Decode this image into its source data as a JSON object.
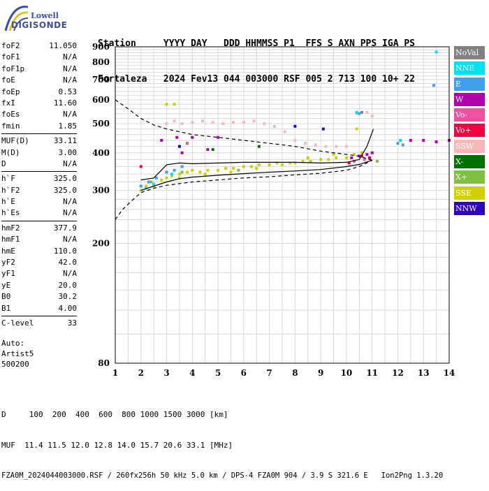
{
  "logo": {
    "line1": "Lowell",
    "line2": "DIGISONDE"
  },
  "header": {
    "row1": [
      "Station",
      "YYYY",
      "DAY",
      "DDD",
      "HHMMSS",
      "P1",
      "FFS",
      "S",
      "AXN",
      "PPS",
      "IGA",
      "PS"
    ],
    "row2": [
      "Fortaleza",
      "2024",
      "Fev13",
      "044",
      "003000",
      "RSF",
      "005",
      "2",
      "713",
      "100",
      "10+",
      "22"
    ]
  },
  "params": [
    {
      "group": [
        {
          "name": "foF2",
          "value": "11.050"
        },
        {
          "name": "foF1",
          "value": "N/A"
        },
        {
          "name": "foF1p",
          "value": "N/A"
        },
        {
          "name": "foE",
          "value": "N/A"
        },
        {
          "name": "foEp",
          "value": "0.53"
        },
        {
          "name": "fxI",
          "value": "11.60"
        },
        {
          "name": "foEs",
          "value": "N/A"
        },
        {
          "name": "fmin",
          "value": "1.85"
        }
      ]
    },
    {
      "group": [
        {
          "name": "MUF(D)",
          "value": "33.11"
        },
        {
          "name": "M(D)",
          "value": "3.00"
        },
        {
          "name": "D",
          "value": "N/A"
        }
      ]
    },
    {
      "group": [
        {
          "name": "h`F",
          "value": "325.0"
        },
        {
          "name": "h`F2",
          "value": "325.0"
        },
        {
          "name": "h`E",
          "value": "N/A"
        },
        {
          "name": "h`Es",
          "value": "N/A"
        }
      ]
    },
    {
      "group": [
        {
          "name": "hmF2",
          "value": "377.9"
        },
        {
          "name": "hmF1",
          "value": "N/A"
        },
        {
          "name": "hmE",
          "value": "110.0"
        },
        {
          "name": "yF2",
          "value": "42.0"
        },
        {
          "name": "yF1",
          "value": "N/A"
        },
        {
          "name": "yE",
          "value": "20.0"
        },
        {
          "name": "B0",
          "value": "30.2"
        },
        {
          "name": "B1",
          "value": "4.00"
        }
      ]
    },
    {
      "group": [
        {
          "name": "C-level",
          "value": "33"
        }
      ]
    }
  ],
  "artist": {
    "line1": "Auto:",
    "line2": "Artist5",
    "line3": "500200"
  },
  "footer": {
    "d_row": "D     100  200  400  600  800 1000 1500 3000 [km]",
    "muf_row": "MUF  11.4 11.5 12.0 12.8 14.0 15.7 20.6 33.1 [MHz]",
    "info_row": "FZA0M_2024044003000.RSF / 260fx256h 50 kHz 5.0 km / DPS-4 FZA0M 904 / 3.9 S 321.6 E   Ion2Png 1.3.20"
  },
  "legend": [
    {
      "label": "NoVal",
      "color": "#808080"
    },
    {
      "label": "NNE",
      "color": "#00e0f0"
    },
    {
      "label": "E",
      "color": "#40a0f0"
    },
    {
      "label": "W",
      "color": "#b000b0"
    },
    {
      "label": "Vo-",
      "color": "#f050a0"
    },
    {
      "label": "Vo+",
      "color": "#f00040"
    },
    {
      "label": "SSW",
      "color": "#f8b8b8"
    },
    {
      "label": "X-",
      "color": "#007000"
    },
    {
      "label": "X+",
      "color": "#80c040"
    },
    {
      "label": "SSE",
      "color": "#d0d000"
    },
    {
      "label": "NNW",
      "color": "#3000c0"
    }
  ],
  "chart_data": {
    "type": "scatter",
    "xlim": [
      1,
      14
    ],
    "ylim": [
      80,
      900
    ],
    "xlabel": "",
    "ylabel": "",
    "y_scale": "log",
    "grid": true,
    "x_ticks": [
      1,
      2,
      3,
      4,
      5,
      6,
      7,
      8,
      9,
      10,
      11,
      12,
      13,
      14
    ],
    "y_ticks": [
      80,
      200,
      300,
      400,
      500,
      600,
      700,
      800,
      900
    ],
    "series": [
      {
        "color": "#d0d000",
        "points": [
          [
            2.0,
            300
          ],
          [
            2.2,
            310
          ],
          [
            2.5,
            315
          ],
          [
            2.8,
            325
          ],
          [
            3.0,
            330
          ],
          [
            3.2,
            335
          ],
          [
            3.5,
            340
          ],
          [
            3.8,
            345
          ],
          [
            4.0,
            350
          ],
          [
            4.3,
            345
          ],
          [
            4.6,
            350
          ],
          [
            5.0,
            350
          ],
          [
            5.3,
            355
          ],
          [
            5.6,
            355
          ],
          [
            6.0,
            360
          ],
          [
            6.3,
            360
          ],
          [
            6.6,
            365
          ],
          [
            7.0,
            365
          ],
          [
            7.3,
            370
          ],
          [
            7.8,
            370
          ],
          [
            8.0,
            370
          ],
          [
            8.3,
            375
          ],
          [
            8.6,
            375
          ],
          [
            9.0,
            380
          ],
          [
            9.3,
            380
          ],
          [
            9.6,
            385
          ],
          [
            10.0,
            385
          ],
          [
            10.3,
            395
          ],
          [
            10.6,
            400
          ],
          [
            3.0,
            580
          ],
          [
            3.3,
            580
          ],
          [
            2.5,
            310
          ],
          [
            3.5,
            330
          ],
          [
            4.5,
            340
          ],
          [
            5.5,
            345
          ],
          [
            6.5,
            355
          ],
          [
            7.5,
            365
          ],
          [
            8.5,
            385
          ],
          [
            9.5,
            395
          ],
          [
            10.4,
            480
          ]
        ]
      },
      {
        "color": "#f8b8b8",
        "points": [
          [
            3.0,
            500
          ],
          [
            3.3,
            510
          ],
          [
            3.6,
            500
          ],
          [
            4.0,
            505
          ],
          [
            4.4,
            510
          ],
          [
            4.8,
            505
          ],
          [
            5.2,
            500
          ],
          [
            5.6,
            505
          ],
          [
            6.0,
            505
          ],
          [
            6.4,
            510
          ],
          [
            6.8,
            500
          ],
          [
            7.2,
            490
          ],
          [
            7.6,
            470
          ],
          [
            8.0,
            440
          ],
          [
            8.4,
            430
          ],
          [
            8.8,
            425
          ],
          [
            9.2,
            420
          ],
          [
            9.6,
            420
          ],
          [
            10.0,
            420
          ],
          [
            10.4,
            540
          ],
          [
            10.8,
            545
          ],
          [
            11.0,
            530
          ]
        ]
      },
      {
        "color": "#b000b0",
        "points": [
          [
            2.8,
            440
          ],
          [
            3.4,
            450
          ],
          [
            4.0,
            450
          ],
          [
            5.0,
            450
          ],
          [
            10.2,
            385
          ],
          [
            10.5,
            390
          ],
          [
            10.8,
            395
          ],
          [
            11.0,
            400
          ],
          [
            12.5,
            440
          ],
          [
            13.0,
            440
          ],
          [
            13.5,
            435
          ],
          [
            14.0,
            440
          ],
          [
            3.6,
            400
          ],
          [
            4.6,
            410
          ]
        ]
      },
      {
        "color": "#40a0f0",
        "points": [
          [
            2.0,
            310
          ],
          [
            2.3,
            320
          ],
          [
            2.6,
            330
          ],
          [
            3.0,
            345
          ],
          [
            3.3,
            350
          ],
          [
            3.6,
            360
          ],
          [
            10.5,
            540
          ],
          [
            12.0,
            430
          ],
          [
            12.2,
            425
          ],
          [
            13.4,
            670
          ]
        ]
      },
      {
        "color": "#00e0f0",
        "points": [
          [
            2.2,
            305
          ],
          [
            2.5,
            315
          ],
          [
            3.2,
            340
          ],
          [
            10.4,
            545
          ],
          [
            12.1,
            440
          ],
          [
            13.5,
            865
          ]
        ]
      },
      {
        "color": "#f00040",
        "points": [
          [
            2.0,
            360
          ],
          [
            10.1,
            370
          ],
          [
            10.6,
            390
          ],
          [
            10.9,
            385
          ]
        ]
      },
      {
        "color": "#f050a0",
        "points": [
          [
            3.8,
            430
          ],
          [
            10.3,
            375
          ],
          [
            10.7,
            380
          ]
        ]
      },
      {
        "color": "#80c040",
        "points": [
          [
            2.4,
            320
          ],
          [
            3.6,
            345
          ],
          [
            5.8,
            350
          ],
          [
            11.2,
            375
          ]
        ]
      },
      {
        "color": "#3000c0",
        "points": [
          [
            3.5,
            420
          ],
          [
            8.0,
            490
          ],
          [
            9.1,
            480
          ]
        ]
      },
      {
        "color": "#007000",
        "points": [
          [
            4.8,
            410
          ],
          [
            6.6,
            420
          ]
        ]
      },
      {
        "color": "#808080",
        "points": [
          [
            10.6,
            545
          ]
        ]
      }
    ],
    "curves": [
      {
        "name": "trace-upper",
        "style": "solid",
        "points": [
          [
            2.0,
            325
          ],
          [
            2.5,
            330
          ],
          [
            3.0,
            365
          ],
          [
            3.5,
            370
          ],
          [
            4.0,
            368
          ],
          [
            5.0,
            370
          ],
          [
            6.0,
            372
          ],
          [
            7.0,
            372
          ],
          [
            8.0,
            372
          ],
          [
            9.0,
            370
          ],
          [
            10.0,
            372
          ],
          [
            10.5,
            380
          ],
          [
            10.8,
            420
          ],
          [
            11.05,
            480
          ]
        ]
      },
      {
        "name": "trace-lower",
        "style": "solid",
        "points": [
          [
            2.0,
            300
          ],
          [
            2.5,
            310
          ],
          [
            3.0,
            320
          ],
          [
            3.5,
            328
          ],
          [
            4.0,
            332
          ],
          [
            5.0,
            337
          ],
          [
            6.0,
            341
          ],
          [
            7.0,
            345
          ],
          [
            8.0,
            348
          ],
          [
            9.0,
            352
          ],
          [
            10.0,
            360
          ],
          [
            10.5,
            366
          ],
          [
            11.0,
            378
          ]
        ]
      },
      {
        "name": "profile-upper",
        "style": "dashed",
        "points": [
          [
            1.0,
            600
          ],
          [
            1.5,
            560
          ],
          [
            2.0,
            520
          ],
          [
            2.5,
            495
          ],
          [
            3.0,
            480
          ],
          [
            4.0,
            460
          ],
          [
            5.0,
            450
          ],
          [
            6.0,
            440
          ],
          [
            7.0,
            430
          ],
          [
            8.0,
            420
          ],
          [
            9.0,
            405
          ],
          [
            10.0,
            395
          ],
          [
            10.5,
            390
          ],
          [
            10.9,
            380
          ],
          [
            11.05,
            378
          ]
        ]
      },
      {
        "name": "profile-lower",
        "style": "dashed",
        "points": [
          [
            1.0,
            240
          ],
          [
            1.3,
            260
          ],
          [
            1.7,
            280
          ],
          [
            2.0,
            295
          ],
          [
            2.5,
            305
          ],
          [
            3.0,
            312
          ],
          [
            4.0,
            320
          ],
          [
            5.0,
            325
          ],
          [
            6.0,
            330
          ],
          [
            7.0,
            333
          ],
          [
            8.0,
            338
          ],
          [
            9.0,
            342
          ],
          [
            10.0,
            350
          ],
          [
            10.5,
            360
          ],
          [
            11.0,
            378
          ]
        ]
      }
    ]
  }
}
